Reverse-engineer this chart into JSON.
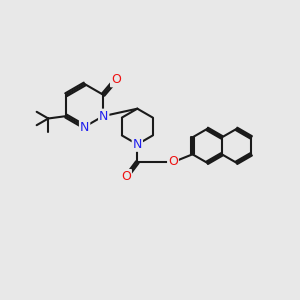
{
  "bg": "#e8e8e8",
  "bc": "#1a1a1a",
  "nc": "#2020ee",
  "oc": "#ee1111",
  "lw": 1.5,
  "fs": 9.0,
  "figsize": [
    3.0,
    3.0
  ],
  "dpi": 100,
  "xlim": [
    0,
    10
  ],
  "ylim": [
    0,
    10
  ]
}
